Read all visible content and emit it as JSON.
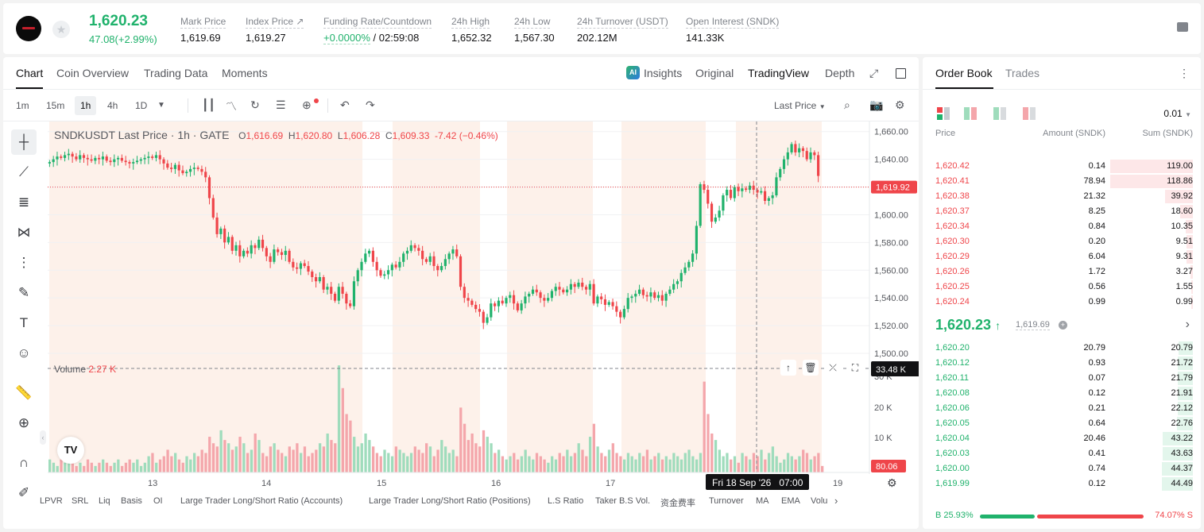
{
  "ticker": {
    "last_price": "1,620.23",
    "change": "47.08(+2.99%)",
    "stats": [
      {
        "label": "Mark Price",
        "value": "1,619.69"
      },
      {
        "label": "Index Price ↗",
        "value": "1,619.27"
      },
      {
        "label": "Funding Rate/Countdown",
        "value_green": "+0.0000%",
        "value": " / 02:59:08"
      },
      {
        "label": "24h High",
        "value": "1,652.32"
      },
      {
        "label": "24h Low",
        "value": "1,567.30"
      },
      {
        "label": "24h Turnover (USDT)",
        "value": "202.12M"
      },
      {
        "label": "Open Interest (SNDK)",
        "value": "141.33K"
      }
    ]
  },
  "chart_tabs": [
    "Chart",
    "Coin Overview",
    "Trading Data",
    "Moments"
  ],
  "chart_views": {
    "insights": "Insights",
    "original": "Original",
    "tradingview": "TradingView",
    "depth": "Depth"
  },
  "intervals": [
    "1m",
    "15m",
    "1h",
    "4h",
    "1D"
  ],
  "selected_interval": "1h",
  "last_price_menu": "Last Price",
  "legend": {
    "symbol": "SNDKUSDT Last Price · 1h · GATE",
    "o_label": "O",
    "o": "1,616.69",
    "h_label": "H",
    "h": "1,620.80",
    "l_label": "L",
    "l": "1,606.28",
    "c_label": "C",
    "c": "1,609.33",
    "chg": "-7.42 (−0.46%)",
    "volume_label": "Volume",
    "volume_value": "2.27 K"
  },
  "price_axis": [
    "1,660.00",
    "1,640.00",
    "1,620.00",
    "1,600.00",
    "1,580.00",
    "1,560.00",
    "1,540.00",
    "1,520.00",
    "1,500.00"
  ],
  "volume_axis": [
    "30 K",
    "20 K",
    "10 K"
  ],
  "current_price_tag": "1,619.92",
  "crosshair_volume_tag": "33.48 K",
  "volume_last_tag": "80.06",
  "time_axis": [
    "13",
    "14",
    "15",
    "16",
    "17",
    "19"
  ],
  "crosshair_time": "Fri 18 Sep '26   07:00",
  "indicators": [
    "LPVR",
    "SRL",
    "Liq",
    "Basis",
    "OI",
    "Large Trader Long/Short Ratio (Accounts)",
    "Large Trader Long/Short Ratio (Positions)",
    "L.S Ratio",
    "Taker B.S Vol.",
    "资金费率",
    "Turnover",
    "MA",
    "EMA",
    "Volu"
  ],
  "colors": {
    "up": "#20b26c",
    "down": "#ef454a",
    "up_vol": "#9fdcbc",
    "down_vol": "#f4a6ab",
    "session_shade": "#fdf1ea"
  },
  "chart_data": {
    "type": "candlestick",
    "ylim": [
      1500,
      1665
    ],
    "closes": [
      1638,
      1640,
      1642,
      1641,
      1643,
      1644,
      1642,
      1640,
      1643,
      1641,
      1640,
      1639,
      1641,
      1640,
      1642,
      1639,
      1638,
      1640,
      1641,
      1639,
      1638,
      1637,
      1638,
      1639,
      1640,
      1641,
      1642,
      1641,
      1643,
      1640,
      1637,
      1634,
      1633,
      1636,
      1632,
      1630,
      1631,
      1633,
      1634,
      1633,
      1631,
      1627,
      1612,
      1598,
      1586,
      1590,
      1580,
      1584,
      1574,
      1578,
      1570,
      1574,
      1572,
      1578,
      1576,
      1582,
      1576,
      1570,
      1566,
      1575,
      1573,
      1571,
      1574,
      1566,
      1562,
      1561,
      1565,
      1563,
      1559,
      1555,
      1552,
      1555,
      1546,
      1548,
      1543,
      1538,
      1548,
      1543,
      1536,
      1534,
      1552,
      1560,
      1566,
      1572,
      1574,
      1566,
      1560,
      1556,
      1557,
      1560,
      1564,
      1562,
      1566,
      1572,
      1574,
      1578,
      1576,
      1574,
      1568,
      1566,
      1570,
      1563,
      1560,
      1563,
      1568,
      1572,
      1575,
      1570,
      1548,
      1540,
      1538,
      1535,
      1532,
      1530,
      1522,
      1526,
      1536,
      1534,
      1538,
      1536,
      1540,
      1542,
      1536,
      1531,
      1536,
      1541,
      1543,
      1546,
      1544,
      1540,
      1538,
      1540,
      1545,
      1548,
      1546,
      1544,
      1546,
      1550,
      1548,
      1551,
      1548,
      1546,
      1550,
      1536,
      1541,
      1539,
      1535,
      1537,
      1534,
      1530,
      1526,
      1532,
      1540,
      1541,
      1543,
      1546,
      1542,
      1541,
      1544,
      1540,
      1542,
      1538,
      1543,
      1546,
      1550,
      1552,
      1558,
      1562,
      1566,
      1572,
      1592,
      1622,
      1618,
      1608,
      1595,
      1598,
      1603,
      1614,
      1618,
      1612,
      1620,
      1617,
      1619,
      1618,
      1621,
      1618,
      1616,
      1617,
      1610,
      1612,
      1614,
      1627,
      1633,
      1640,
      1645,
      1651,
      1645,
      1648,
      1646,
      1640,
      1645,
      1643,
      1628
    ],
    "volumes": [
      4,
      3,
      2,
      4,
      3,
      5,
      3,
      2,
      3,
      2,
      4,
      3,
      2,
      3,
      4,
      3,
      2,
      3,
      4,
      2,
      3,
      4,
      3,
      4,
      2,
      3,
      5,
      6,
      3,
      4,
      5,
      7,
      5,
      6,
      4,
      3,
      5,
      4,
      6,
      5,
      7,
      6,
      11,
      9,
      8,
      13,
      10,
      9,
      7,
      8,
      11,
      9,
      6,
      7,
      12,
      10,
      6,
      5,
      8,
      9,
      7,
      6,
      5,
      8,
      7,
      9,
      6,
      8,
      5,
      6,
      7,
      9,
      8,
      12,
      10,
      9,
      33,
      26,
      18,
      16,
      11,
      8,
      9,
      12,
      10,
      8,
      6,
      5,
      7,
      6,
      5,
      8,
      7,
      6,
      5,
      6,
      8,
      7,
      6,
      9,
      8,
      5,
      7,
      10,
      8,
      6,
      7,
      5,
      20,
      15,
      10,
      12,
      9,
      8,
      13,
      11,
      9,
      6,
      7,
      5,
      4,
      5,
      6,
      4,
      5,
      7,
      5,
      4,
      6,
      5,
      4,
      3,
      5,
      4,
      6,
      5,
      7,
      5,
      6,
      9,
      7,
      5,
      11,
      15,
      8,
      6,
      5,
      7,
      9,
      6,
      5,
      4,
      6,
      5,
      4,
      6,
      5,
      7,
      4,
      5,
      6,
      4,
      5,
      4,
      6,
      5,
      4,
      6,
      7,
      5,
      4,
      6,
      28,
      18,
      12,
      10,
      7,
      5,
      6,
      4,
      5,
      3,
      6,
      5,
      4,
      6,
      5,
      7,
      4,
      6,
      8,
      5,
      3,
      4,
      6,
      5,
      4,
      5,
      7,
      6,
      4,
      5,
      6,
      2
    ]
  },
  "order_book": {
    "tabs": [
      "Order Book",
      "Trades"
    ],
    "precision": "0.01",
    "columns": [
      "Price",
      "Amount (SNDK)",
      "Sum (SNDK)"
    ],
    "asks": [
      {
        "price": "1,620.42",
        "amount": "0.14",
        "sum": "119.00"
      },
      {
        "price": "1,620.41",
        "amount": "78.94",
        "sum": "118.86"
      },
      {
        "price": "1,620.38",
        "amount": "21.32",
        "sum": "39.92"
      },
      {
        "price": "1,620.37",
        "amount": "8.25",
        "sum": "18.60"
      },
      {
        "price": "1,620.34",
        "amount": "0.84",
        "sum": "10.35"
      },
      {
        "price": "1,620.30",
        "amount": "0.20",
        "sum": "9.51"
      },
      {
        "price": "1,620.29",
        "amount": "6.04",
        "sum": "9.31"
      },
      {
        "price": "1,620.26",
        "amount": "1.72",
        "sum": "3.27"
      },
      {
        "price": "1,620.25",
        "amount": "0.56",
        "sum": "1.55"
      },
      {
        "price": "1,620.24",
        "amount": "0.99",
        "sum": "0.99"
      }
    ],
    "mid_price": "1,620.23",
    "mid_mark": "1,619.69",
    "bids": [
      {
        "price": "1,620.20",
        "amount": "20.79",
        "sum": "20.79"
      },
      {
        "price": "1,620.12",
        "amount": "0.93",
        "sum": "21.72"
      },
      {
        "price": "1,620.11",
        "amount": "0.07",
        "sum": "21.79"
      },
      {
        "price": "1,620.08",
        "amount": "0.12",
        "sum": "21.91"
      },
      {
        "price": "1,620.06",
        "amount": "0.21",
        "sum": "22.12"
      },
      {
        "price": "1,620.05",
        "amount": "0.64",
        "sum": "22.76"
      },
      {
        "price": "1,620.04",
        "amount": "20.46",
        "sum": "43.22"
      },
      {
        "price": "1,620.03",
        "amount": "0.41",
        "sum": "43.63"
      },
      {
        "price": "1,620.00",
        "amount": "0.74",
        "sum": "44.37"
      },
      {
        "price": "1,619.99",
        "amount": "0.12",
        "sum": "44.49"
      }
    ],
    "buy_ratio": "B 25.93%",
    "sell_ratio": "74.07% S",
    "buy_fraction": 0.2593
  }
}
